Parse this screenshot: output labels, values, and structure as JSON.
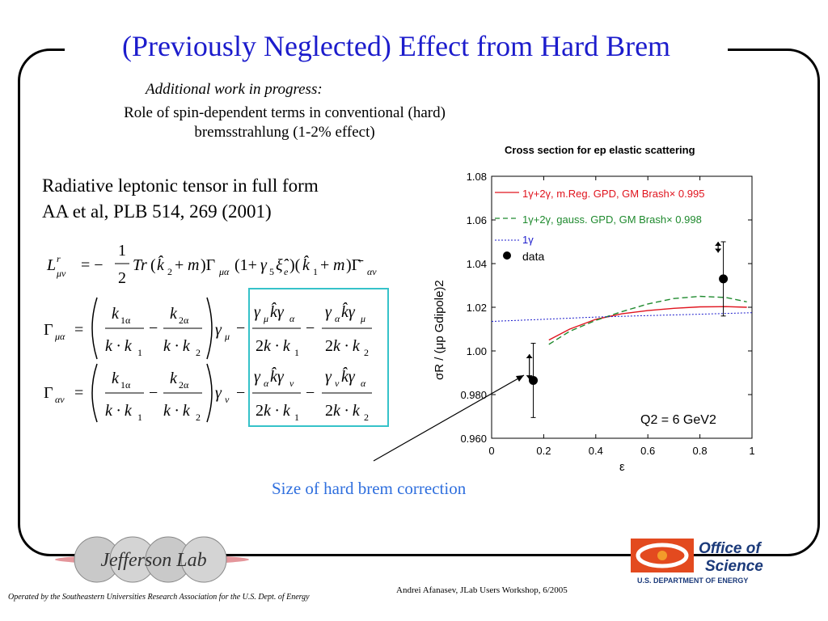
{
  "slide": {
    "title": "(Previously Neglected) Effect from Hard Brem",
    "subtitle_italic": "Additional work in progress:",
    "subtitle_text": "Role of spin-dependent terms in conventional (hard) bremsstrahlung (1-2% effect)",
    "body_line1": "Radiative leptonic tensor in full form",
    "body_line2": "AA et al, PLB 514, 269 (2001)",
    "hard_brem_caption": "Size of hard brem correction",
    "footer_left": "Operated by the Southeastern Universities Research Association for the U.S. Dept. of Energy",
    "footer_right": "Andrei Afanasev, JLab Users Workshop, 6/2005",
    "logo_left_text": "Jefferson Lab",
    "logo_right_line1": "Office of",
    "logo_right_line2": "Science",
    "logo_right_line3": "U.S. DEPARTMENT OF ENERGY"
  },
  "colors": {
    "title": "#1c1ccc",
    "caption": "#2f6fde",
    "box": "#36c2c9",
    "series_red": "#e0141e",
    "series_green": "#1f8a2e",
    "series_blue": "#1c1ccc"
  },
  "chart_data": {
    "type": "line",
    "title": "Cross section for ep elastic scattering",
    "xlabel": "ε",
    "ylabel": "σR / (μp Gdipole)2",
    "xlim": [
      0,
      1
    ],
    "ylim": [
      0.96,
      1.08
    ],
    "x_ticks": [
      "0",
      "0.2",
      "0.4",
      "0.6",
      "0.8",
      "1"
    ],
    "y_ticks": [
      "0.960",
      "0.980",
      "1.00",
      "1.02",
      "1.04",
      "1.06",
      "1.08"
    ],
    "annotation": "Q2 = 6 GeV2",
    "legend": [
      "1γ+2γ, m.Reg. GPD, GM Brash× 0.995",
      "1γ+2γ, gauss. GPD, GM Brash× 0.998",
      "1γ",
      "data"
    ],
    "series": [
      {
        "name": "1γ+2γ, m.Reg. GPD, GM Brash× 0.995",
        "style": "solid",
        "color": "#e0141e",
        "x": [
          0.22,
          0.3,
          0.4,
          0.5,
          0.6,
          0.7,
          0.8,
          0.9,
          0.98
        ],
        "y": [
          1.005,
          1.01,
          1.0145,
          1.017,
          1.0185,
          1.0195,
          1.0202,
          1.0203,
          1.02
        ]
      },
      {
        "name": "1γ+2γ, gauss. GPD, GM Brash× 0.998",
        "style": "dashed",
        "color": "#1f8a2e",
        "x": [
          0.22,
          0.3,
          0.4,
          0.5,
          0.6,
          0.7,
          0.8,
          0.9,
          0.98
        ],
        "y": [
          1.003,
          1.009,
          1.014,
          1.018,
          1.0215,
          1.024,
          1.025,
          1.0245,
          1.0225
        ]
      },
      {
        "name": "1γ",
        "style": "dotted",
        "color": "#1c1ccc",
        "x": [
          0.0,
          0.2,
          0.4,
          0.6,
          0.8,
          1.0
        ],
        "y": [
          1.0135,
          1.0145,
          1.0155,
          1.0162,
          1.0168,
          1.0175
        ]
      }
    ],
    "data_points": [
      {
        "x": 0.16,
        "y": 0.9865,
        "err": 0.017
      },
      {
        "x": 0.89,
        "y": 1.033,
        "err": 0.017
      }
    ],
    "hard_brem_markers": [
      {
        "x": 0.145,
        "y_low": 0.987,
        "y_high": 0.9985
      },
      {
        "x": 0.87,
        "y_low": 1.045,
        "y_high": 1.05
      }
    ]
  }
}
